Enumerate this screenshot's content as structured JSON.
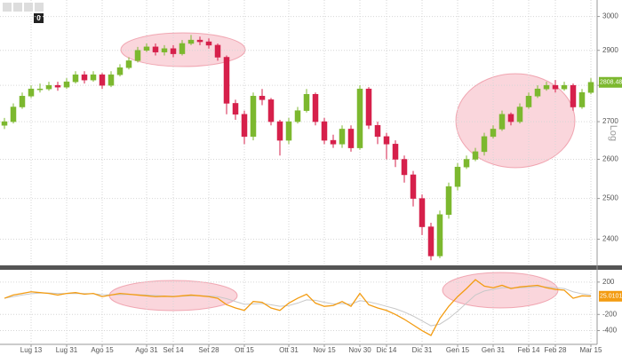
{
  "toolbar_badge": "0",
  "chart_data": [
    {
      "type": "candlestick",
      "ylabel": "Log",
      "log_scale": true,
      "grid": true,
      "up_color": "#7cb82f",
      "down_color": "#d6204b",
      "ylim": [
        2340,
        3050
      ],
      "yticks": [
        2400,
        2500,
        2600,
        2700,
        2800,
        2900,
        3000
      ],
      "close_label": "2808.4800",
      "open": [
        2690,
        2700,
        2740,
        2770,
        2790,
        2790,
        2800,
        2795,
        2810,
        2830,
        2815,
        2830,
        2800,
        2830,
        2850,
        2870,
        2900,
        2910,
        2895,
        2905,
        2890,
        2920,
        2930,
        2925,
        2915,
        2880,
        2750,
        2720,
        2660,
        2770,
        2760,
        2700,
        2650,
        2700,
        2730,
        2775,
        2700,
        2650,
        2640,
        2680,
        2630,
        2790,
        2690,
        2660,
        2640,
        2600,
        2560,
        2500,
        2430,
        2360,
        2460,
        2530,
        2580,
        2600,
        2620,
        2660,
        2680,
        2720,
        2700,
        2740,
        2770,
        2790,
        2800,
        2790,
        2800,
        2740,
        2780
      ],
      "high": [
        2710,
        2750,
        2780,
        2800,
        2805,
        2810,
        2810,
        2820,
        2840,
        2840,
        2840,
        2835,
        2840,
        2860,
        2880,
        2910,
        2920,
        2920,
        2915,
        2915,
        2930,
        2945,
        2940,
        2935,
        2920,
        2885,
        2760,
        2730,
        2780,
        2790,
        2765,
        2705,
        2710,
        2740,
        2790,
        2780,
        2710,
        2665,
        2690,
        2690,
        2800,
        2795,
        2700,
        2670,
        2650,
        2610,
        2570,
        2510,
        2440,
        2470,
        2540,
        2590,
        2610,
        2630,
        2670,
        2690,
        2730,
        2725,
        2750,
        2780,
        2800,
        2810,
        2815,
        2810,
        2805,
        2790,
        2820
      ],
      "low": [
        2680,
        2695,
        2735,
        2765,
        2780,
        2785,
        2785,
        2790,
        2805,
        2805,
        2810,
        2790,
        2795,
        2825,
        2845,
        2865,
        2895,
        2885,
        2885,
        2880,
        2885,
        2915,
        2915,
        2905,
        2870,
        2720,
        2705,
        2640,
        2650,
        2745,
        2690,
        2610,
        2640,
        2695,
        2725,
        2690,
        2640,
        2630,
        2630,
        2620,
        2625,
        2680,
        2640,
        2600,
        2580,
        2540,
        2480,
        2410,
        2350,
        2355,
        2450,
        2520,
        2575,
        2595,
        2610,
        2655,
        2675,
        2690,
        2695,
        2735,
        2765,
        2785,
        2780,
        2785,
        2730,
        2735,
        2775
      ],
      "close": [
        2700,
        2740,
        2770,
        2790,
        2790,
        2800,
        2795,
        2810,
        2830,
        2815,
        2830,
        2800,
        2830,
        2850,
        2870,
        2900,
        2910,
        2895,
        2905,
        2890,
        2920,
        2930,
        2925,
        2915,
        2880,
        2750,
        2720,
        2660,
        2770,
        2760,
        2700,
        2650,
        2700,
        2730,
        2775,
        2700,
        2650,
        2640,
        2680,
        2630,
        2790,
        2690,
        2660,
        2640,
        2600,
        2560,
        2500,
        2430,
        2360,
        2460,
        2530,
        2580,
        2600,
        2620,
        2660,
        2680,
        2720,
        2700,
        2740,
        2770,
        2790,
        2800,
        2790,
        2800,
        2740,
        2780,
        2808.48
      ]
    },
    {
      "type": "line",
      "ylim": [
        -570,
        330
      ],
      "yticks": [
        200,
        -200,
        -400
      ],
      "grid": true,
      "categories": [
        null,
        null,
        null,
        "Lug 13",
        null,
        null,
        null,
        "Lug 31",
        null,
        null,
        null,
        "Ago 15",
        null,
        null,
        null,
        null,
        "Ago 31",
        null,
        null,
        "Set 14",
        null,
        null,
        null,
        "Set 28",
        null,
        null,
        null,
        "Ott 15",
        null,
        null,
        null,
        null,
        "Ott 31",
        null,
        null,
        null,
        "Nov 15",
        null,
        null,
        null,
        "Nov 30",
        null,
        null,
        "Dic 14",
        null,
        null,
        null,
        "Dic 31",
        null,
        null,
        null,
        "Gen 15",
        null,
        null,
        null,
        "Gen 31",
        null,
        null,
        null,
        "Feb 14",
        null,
        null,
        "Feb 28",
        null,
        null,
        null,
        "Mar 15"
      ],
      "series": [
        {
          "color": "#f39c12",
          "values": [
            0,
            40,
            60,
            80,
            70,
            60,
            40,
            60,
            70,
            50,
            60,
            20,
            40,
            60,
            50,
            40,
            30,
            20,
            25,
            20,
            30,
            40,
            30,
            20,
            0,
            -80,
            -120,
            -150,
            -40,
            -50,
            -120,
            -150,
            -60,
            0,
            50,
            -60,
            -100,
            -90,
            -40,
            -100,
            60,
            -80,
            -120,
            -150,
            -200,
            -260,
            -330,
            -400,
            -460,
            -250,
            -100,
            20,
            120,
            230,
            150,
            130,
            160,
            120,
            140,
            150,
            160,
            130,
            110,
            100,
            0,
            30,
            25.0101
          ]
        },
        {
          "color": "#c8c8c8",
          "values": [
            0,
            20,
            40,
            55,
            65,
            65,
            60,
            57,
            60,
            58,
            56,
            45,
            42,
            45,
            48,
            45,
            40,
            33,
            28,
            25,
            26,
            30,
            32,
            28,
            20,
            -5,
            -40,
            -75,
            -70,
            -65,
            -80,
            -100,
            -90,
            -60,
            -20,
            -25,
            -50,
            -70,
            -65,
            -75,
            -30,
            -45,
            -70,
            -100,
            -130,
            -170,
            -220,
            -280,
            -340,
            -320,
            -250,
            -160,
            -60,
            40,
            90,
            110,
            130,
            130,
            130,
            135,
            145,
            140,
            130,
            120,
            80,
            55,
            40
          ]
        }
      ]
    }
  ]
}
